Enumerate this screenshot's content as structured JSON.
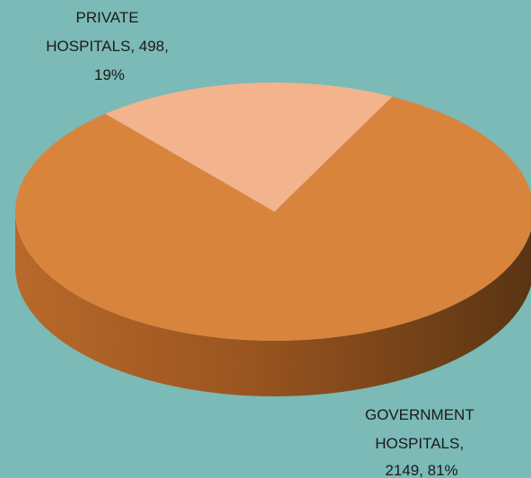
{
  "chart_data": {
    "type": "pie",
    "style": "3d",
    "title": "",
    "slices": [
      {
        "name": "GOVERNMENT HOSPITALS",
        "value": 2149,
        "percent": "81%",
        "color": "#d9843d",
        "label_lines": [
          "GOVERNMENT",
          "HOSPITALS,",
          "2149, 81%"
        ]
      },
      {
        "name": "PRIVATE HOSPITALS",
        "value": 498,
        "percent": "19%",
        "color": "#f3b38d",
        "label_lines": [
          "PRIVATE",
          "HOSPITALS, 498,",
          "19%"
        ]
      }
    ],
    "legend": "none"
  },
  "colors": {
    "background": "#7bbab6",
    "side_light": "#b96d2b",
    "side_dark": "#5a3413"
  }
}
